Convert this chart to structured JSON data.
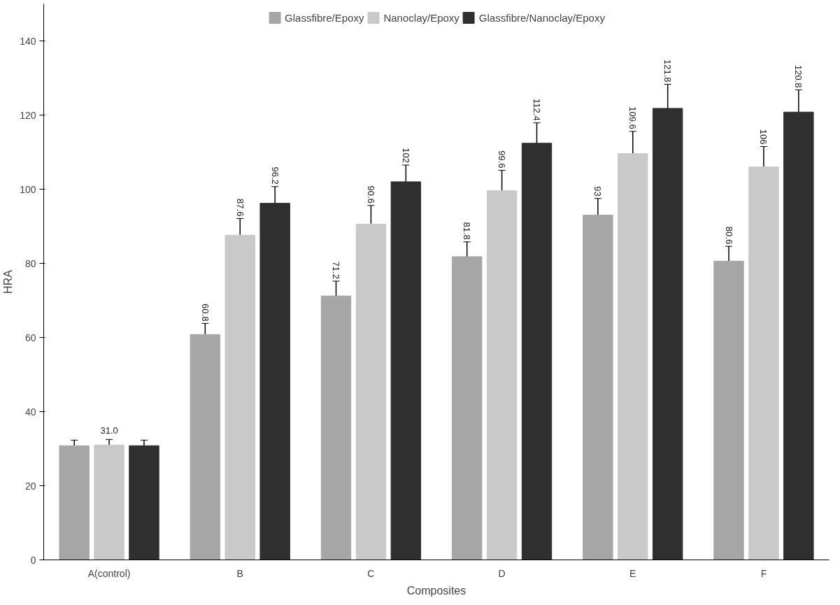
{
  "chart_data": {
    "type": "bar",
    "xlabel": "Composites",
    "ylabel": "HRA",
    "categories": [
      "A(control)",
      "B",
      "C",
      "D",
      "E",
      "F"
    ],
    "series": [
      {
        "name": "Glassfibre/Epoxy",
        "color": "#a6a6a6",
        "values": [
          30.8,
          60.8,
          71.2,
          81.8,
          93,
          80.6
        ],
        "errors": [
          1.5,
          3,
          4,
          4,
          4.5,
          4
        ],
        "value_labels": [
          null,
          "60.8",
          "71.2",
          "81.8",
          "93",
          "80.6"
        ]
      },
      {
        "name": "Nanoclay/Epoxy",
        "color": "#c9c9c9",
        "values": [
          31.0,
          87.6,
          90.6,
          99.6,
          109.6,
          106
        ],
        "errors": [
          1.5,
          4.5,
          5,
          5.5,
          6,
          5.5
        ],
        "value_labels": [
          "31.0",
          "87.6",
          "90.6",
          "99.6",
          "109.6",
          "106"
        ]
      },
      {
        "name": "Glassfibre/Nanoclay/Epoxy",
        "color": "#2f2f2f",
        "values": [
          30.8,
          96.2,
          102,
          112.4,
          121.8,
          120.8
        ],
        "errors": [
          1.5,
          4.5,
          4.5,
          5.5,
          6.5,
          6
        ],
        "value_labels": [
          null,
          "96.2",
          "102",
          "112.4",
          "121.8",
          "120.8"
        ]
      }
    ],
    "ylim": [
      0,
      150
    ],
    "yticks": [
      0,
      20,
      40,
      60,
      80,
      100,
      120,
      140
    ],
    "grid": false,
    "legend": "top"
  }
}
